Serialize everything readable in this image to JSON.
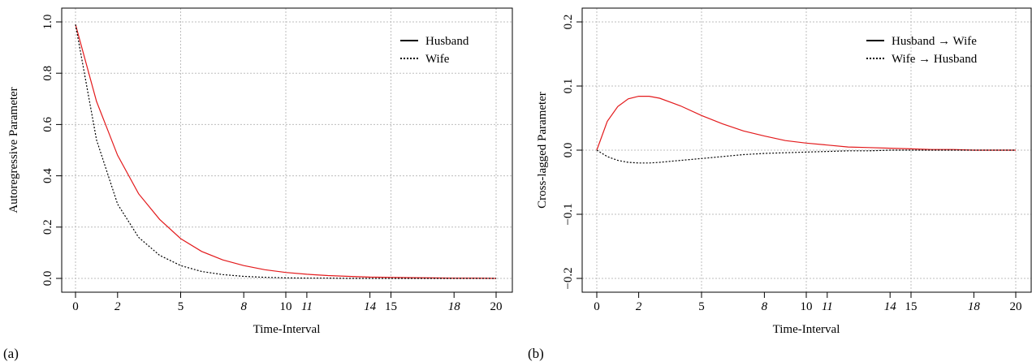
{
  "chart_data": [
    {
      "type": "line",
      "panel_label": "(a)",
      "xlabel": "Time-Interval",
      "ylabel": "Autoregressive Parameter",
      "xlim": [
        0,
        20
      ],
      "ylim": [
        0,
        1
      ],
      "grid": true,
      "legend_position": "top-right",
      "xticks_regular": [
        "0",
        "5",
        "10",
        "15",
        "20"
      ],
      "xticks_italic": [
        "2",
        "8",
        "11",
        "14",
        "18"
      ],
      "yticks": [
        "0.0",
        "0.2",
        "0.4",
        "0.6",
        "0.8",
        "1.0"
      ],
      "series": [
        {
          "name": "Husband",
          "color": "#e31a1c",
          "style": "solid",
          "x": [
            0,
            1,
            2,
            3,
            4,
            5,
            6,
            7,
            8,
            9,
            10,
            11,
            12,
            13,
            14,
            15,
            16,
            17,
            18,
            19,
            20
          ],
          "y": [
            0.99,
            0.69,
            0.48,
            0.33,
            0.23,
            0.155,
            0.105,
            0.072,
            0.05,
            0.034,
            0.023,
            0.016,
            0.011,
            0.008,
            0.005,
            0.004,
            0.003,
            0.002,
            0.001,
            0.001,
            0.0
          ]
        },
        {
          "name": "Wife",
          "color": "#000000",
          "style": "dotted",
          "x": [
            0,
            1,
            2,
            3,
            4,
            5,
            6,
            7,
            8,
            9,
            10,
            11,
            12,
            13,
            14,
            15,
            16,
            17,
            18,
            19,
            20
          ],
          "y": [
            0.99,
            0.54,
            0.29,
            0.16,
            0.09,
            0.05,
            0.027,
            0.015,
            0.008,
            0.004,
            0.002,
            0.001,
            0.001,
            0.0,
            0.0,
            0.0,
            0.0,
            0.0,
            0.0,
            0.0,
            0.0
          ]
        }
      ]
    },
    {
      "type": "line",
      "panel_label": "(b)",
      "xlabel": "Time-Interval",
      "ylabel": "Cross-lagged Parameter",
      "xlim": [
        0,
        20
      ],
      "ylim": [
        -0.2,
        0.2
      ],
      "grid": true,
      "legend_position": "top-right",
      "xticks_regular": [
        "0",
        "5",
        "10",
        "15",
        "20"
      ],
      "xticks_italic": [
        "2",
        "8",
        "11",
        "14",
        "18"
      ],
      "yticks": [
        "−0.2",
        "−0.1",
        "0.0",
        "0.1",
        "0.2"
      ],
      "series": [
        {
          "name": "Husband → Wife",
          "color": "#e31a1c",
          "style": "solid",
          "x": [
            0,
            0.5,
            1,
            1.5,
            2,
            2.5,
            3,
            4,
            5,
            6,
            7,
            8,
            9,
            10,
            11,
            12,
            13,
            14,
            15,
            16,
            17,
            18,
            19,
            20
          ],
          "y": [
            0.0,
            0.045,
            0.068,
            0.08,
            0.084,
            0.084,
            0.081,
            0.069,
            0.054,
            0.041,
            0.03,
            0.022,
            0.015,
            0.011,
            0.008,
            0.005,
            0.004,
            0.003,
            0.002,
            0.001,
            0.001,
            0.0,
            0.0,
            0.0
          ]
        },
        {
          "name": "Wife → Husband",
          "color": "#000000",
          "style": "dotted",
          "x": [
            0,
            0.5,
            1,
            1.5,
            2,
            2.5,
            3,
            4,
            5,
            6,
            7,
            8,
            9,
            10,
            11,
            12,
            13,
            14,
            15,
            16,
            17,
            18,
            19,
            20
          ],
          "y": [
            0.0,
            -0.01,
            -0.016,
            -0.019,
            -0.02,
            -0.02,
            -0.019,
            -0.016,
            -0.013,
            -0.01,
            -0.007,
            -0.005,
            -0.004,
            -0.003,
            -0.002,
            -0.001,
            -0.001,
            0.0,
            0.0,
            0.0,
            0.0,
            0.0,
            0.0,
            0.0
          ]
        }
      ]
    }
  ]
}
